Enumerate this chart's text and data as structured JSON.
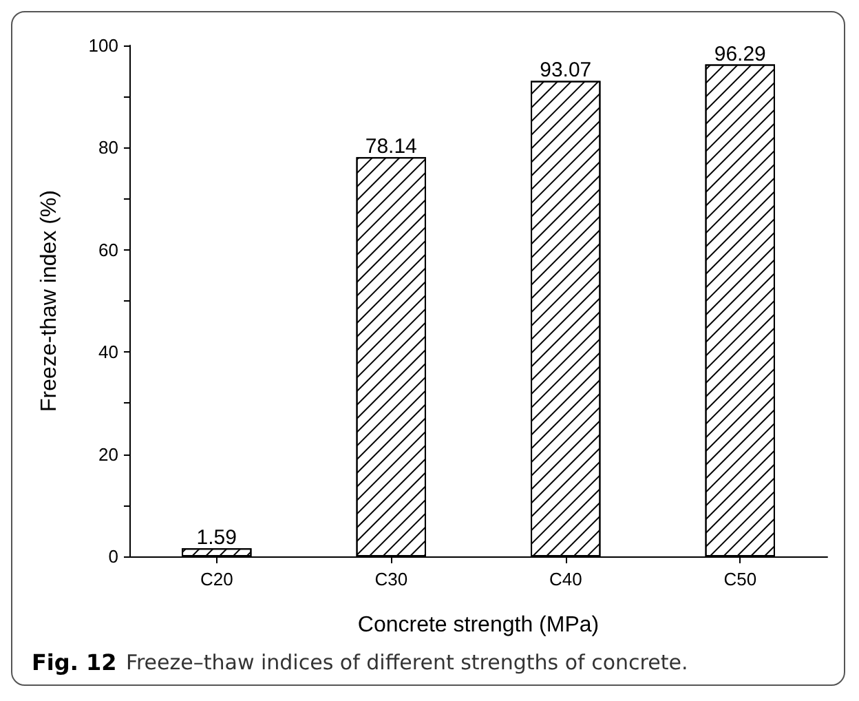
{
  "chart_data": {
    "type": "bar",
    "xlabel": "Concrete strength (MPa)",
    "ylabel": "Freeze-thaw index (%)",
    "categories": [
      "C20",
      "C30",
      "C40",
      "C50"
    ],
    "values": [
      1.59,
      78.14,
      93.07,
      96.29
    ],
    "color": "#ffffff",
    "ylim": [
      0,
      100
    ],
    "yticks": [
      0,
      20,
      40,
      60,
      80,
      100
    ],
    "grid": false,
    "data_labels": true,
    "annotations": [
      "Fig. 12",
      "Freeze–thaw indices of different strengths of concrete."
    ]
  }
}
